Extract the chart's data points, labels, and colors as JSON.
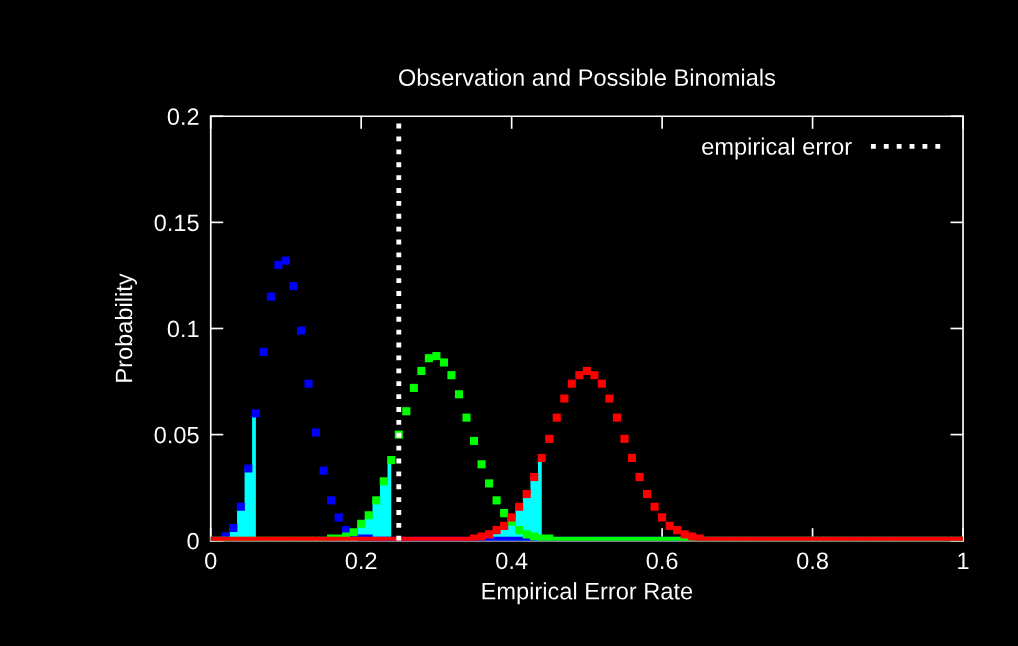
{
  "chart_data": {
    "type": "scatter",
    "title": "Observation and Possible Binomials",
    "xlabel": "Empirical Error Rate",
    "ylabel": "Probability",
    "x": [
      0,
      0.01,
      0.02,
      0.03,
      0.04,
      0.05,
      0.06,
      0.07,
      0.08,
      0.09,
      0.1,
      0.11,
      0.12,
      0.13,
      0.14,
      0.15,
      0.16,
      0.17,
      0.18,
      0.19,
      0.2,
      0.21,
      0.22,
      0.23,
      0.24,
      0.25,
      0.26,
      0.27,
      0.28,
      0.29,
      0.3,
      0.31,
      0.32,
      0.33,
      0.34,
      0.35,
      0.36,
      0.37,
      0.38,
      0.39,
      0.4,
      0.41,
      0.42,
      0.43,
      0.44,
      0.45,
      0.46,
      0.47,
      0.48,
      0.49,
      0.5,
      0.51,
      0.52,
      0.53,
      0.54,
      0.55,
      0.56,
      0.57,
      0.58,
      0.59,
      0.6,
      0.61,
      0.62,
      0.63,
      0.64,
      0.65,
      0.66,
      0.67,
      0.68,
      0.69,
      0.7,
      0.71,
      0.72,
      0.73,
      0.74,
      0.75,
      0.76,
      0.77,
      0.78,
      0.79,
      0.8,
      0.81,
      0.82,
      0.83,
      0.84,
      0.85,
      0.86,
      0.87,
      0.88,
      0.89,
      0.9,
      0.91,
      0.92,
      0.93,
      0.94,
      0.95,
      0.96,
      0.97,
      0.98,
      0.99,
      1
    ],
    "series": [
      {
        "type": "area",
        "marker": "none",
        "color": "#00ffff",
        "x": [
          0,
          0.01,
          0.02,
          0.03,
          0.04,
          0.05,
          0.06
        ],
        "values": [
          0,
          0,
          0.002,
          0.006,
          0.016,
          0.034,
          0.06
        ]
      },
      {
        "type": "area",
        "marker": "none",
        "color": "#00ffff",
        "x": [
          0.15,
          0.16,
          0.17,
          0.18,
          0.19,
          0.2,
          0.21,
          0.22,
          0.23,
          0.24
        ],
        "values": [
          0,
          0.001,
          0.001,
          0.002,
          0.004,
          0.008,
          0.012,
          0.019,
          0.028,
          0.038
        ]
      },
      {
        "type": "area",
        "marker": "none",
        "color": "#00ffff",
        "x": [
          0.35,
          0.36,
          0.37,
          0.38,
          0.39,
          0.4,
          0.41,
          0.42,
          0.43,
          0.44
        ],
        "values": [
          0.001,
          0.002,
          0.003,
          0.005,
          0.007,
          0.011,
          0.016,
          0.022,
          0.03,
          0.039
        ]
      },
      {
        "type": "scatter",
        "color": "#0000ff",
        "values": [
          0,
          0,
          0.002,
          0.006,
          0.016,
          0.034,
          0.06,
          0.089,
          0.115,
          0.13,
          0.132,
          0.12,
          0.099,
          0.074,
          0.051,
          0.033,
          0.019,
          0.011,
          0.005,
          0.003,
          0.001,
          0.001,
          0,
          0,
          0,
          0,
          0,
          0,
          0,
          0,
          0,
          0,
          0,
          0,
          0,
          0,
          0,
          0,
          0,
          0,
          0,
          0,
          0,
          0,
          0,
          0,
          0,
          0,
          0,
          0,
          0,
          0,
          0,
          0,
          0,
          0,
          0,
          0,
          0,
          0,
          0,
          0,
          0,
          0,
          0,
          0,
          0,
          0,
          0,
          0,
          0,
          0,
          0,
          0,
          0,
          0,
          0,
          0,
          0,
          0,
          0,
          0,
          0,
          0,
          0,
          0,
          0,
          0,
          0,
          0,
          0,
          0,
          0,
          0,
          0,
          0,
          0,
          0,
          0,
          0,
          0
        ]
      },
      {
        "type": "scatter",
        "color": "#00ff00",
        "values": [
          0,
          0,
          0,
          0,
          0,
          0,
          0,
          0,
          0,
          0,
          0,
          0,
          0,
          0,
          0,
          0,
          0.001,
          0.001,
          0.002,
          0.004,
          0.008,
          0.012,
          0.019,
          0.028,
          0.038,
          0.05,
          0.061,
          0.072,
          0.08,
          0.086,
          0.087,
          0.084,
          0.078,
          0.069,
          0.058,
          0.047,
          0.036,
          0.027,
          0.019,
          0.013,
          0.009,
          0.005,
          0.003,
          0.002,
          0.001,
          0.001,
          0,
          0,
          0,
          0,
          0,
          0,
          0,
          0,
          0,
          0,
          0,
          0,
          0,
          0,
          0,
          0,
          0,
          0,
          0,
          0,
          0,
          0,
          0,
          0,
          0,
          0,
          0,
          0,
          0,
          0,
          0,
          0,
          0,
          0,
          0,
          0,
          0,
          0,
          0,
          0,
          0,
          0,
          0,
          0,
          0,
          0,
          0,
          0,
          0,
          0,
          0,
          0,
          0,
          0,
          0
        ]
      },
      {
        "type": "scatter",
        "color": "#ff0000",
        "values": [
          0,
          0,
          0,
          0,
          0,
          0,
          0,
          0,
          0,
          0,
          0,
          0,
          0,
          0,
          0,
          0,
          0,
          0,
          0,
          0,
          0,
          0,
          0,
          0,
          0,
          0,
          0,
          0,
          0,
          0,
          0,
          0,
          0,
          0,
          0,
          0.001,
          0.002,
          0.003,
          0.005,
          0.007,
          0.011,
          0.016,
          0.022,
          0.03,
          0.039,
          0.048,
          0.058,
          0.067,
          0.074,
          0.078,
          0.08,
          0.078,
          0.074,
          0.067,
          0.058,
          0.048,
          0.039,
          0.03,
          0.022,
          0.016,
          0.011,
          0.007,
          0.005,
          0.003,
          0.002,
          0.001,
          0,
          0,
          0,
          0,
          0,
          0,
          0,
          0,
          0,
          0,
          0,
          0,
          0,
          0,
          0,
          0,
          0,
          0,
          0,
          0,
          0,
          0,
          0,
          0,
          0,
          0,
          0,
          0,
          0,
          0,
          0,
          0,
          0,
          0,
          0
        ]
      }
    ],
    "ref_lines": [
      {
        "axis": "x",
        "value": 0.25,
        "label": "empirical error",
        "color": "#ffffff",
        "line_style": "dotted"
      }
    ],
    "xlim": [
      0,
      1
    ],
    "ylim": [
      0,
      0.2
    ],
    "xticks": [
      0,
      0.2,
      0.4,
      0.6,
      0.8,
      1
    ],
    "yticks": [
      0,
      0.05,
      0.1,
      0.15,
      0.2
    ],
    "marker": "square",
    "grid": false,
    "legend": "top right"
  }
}
